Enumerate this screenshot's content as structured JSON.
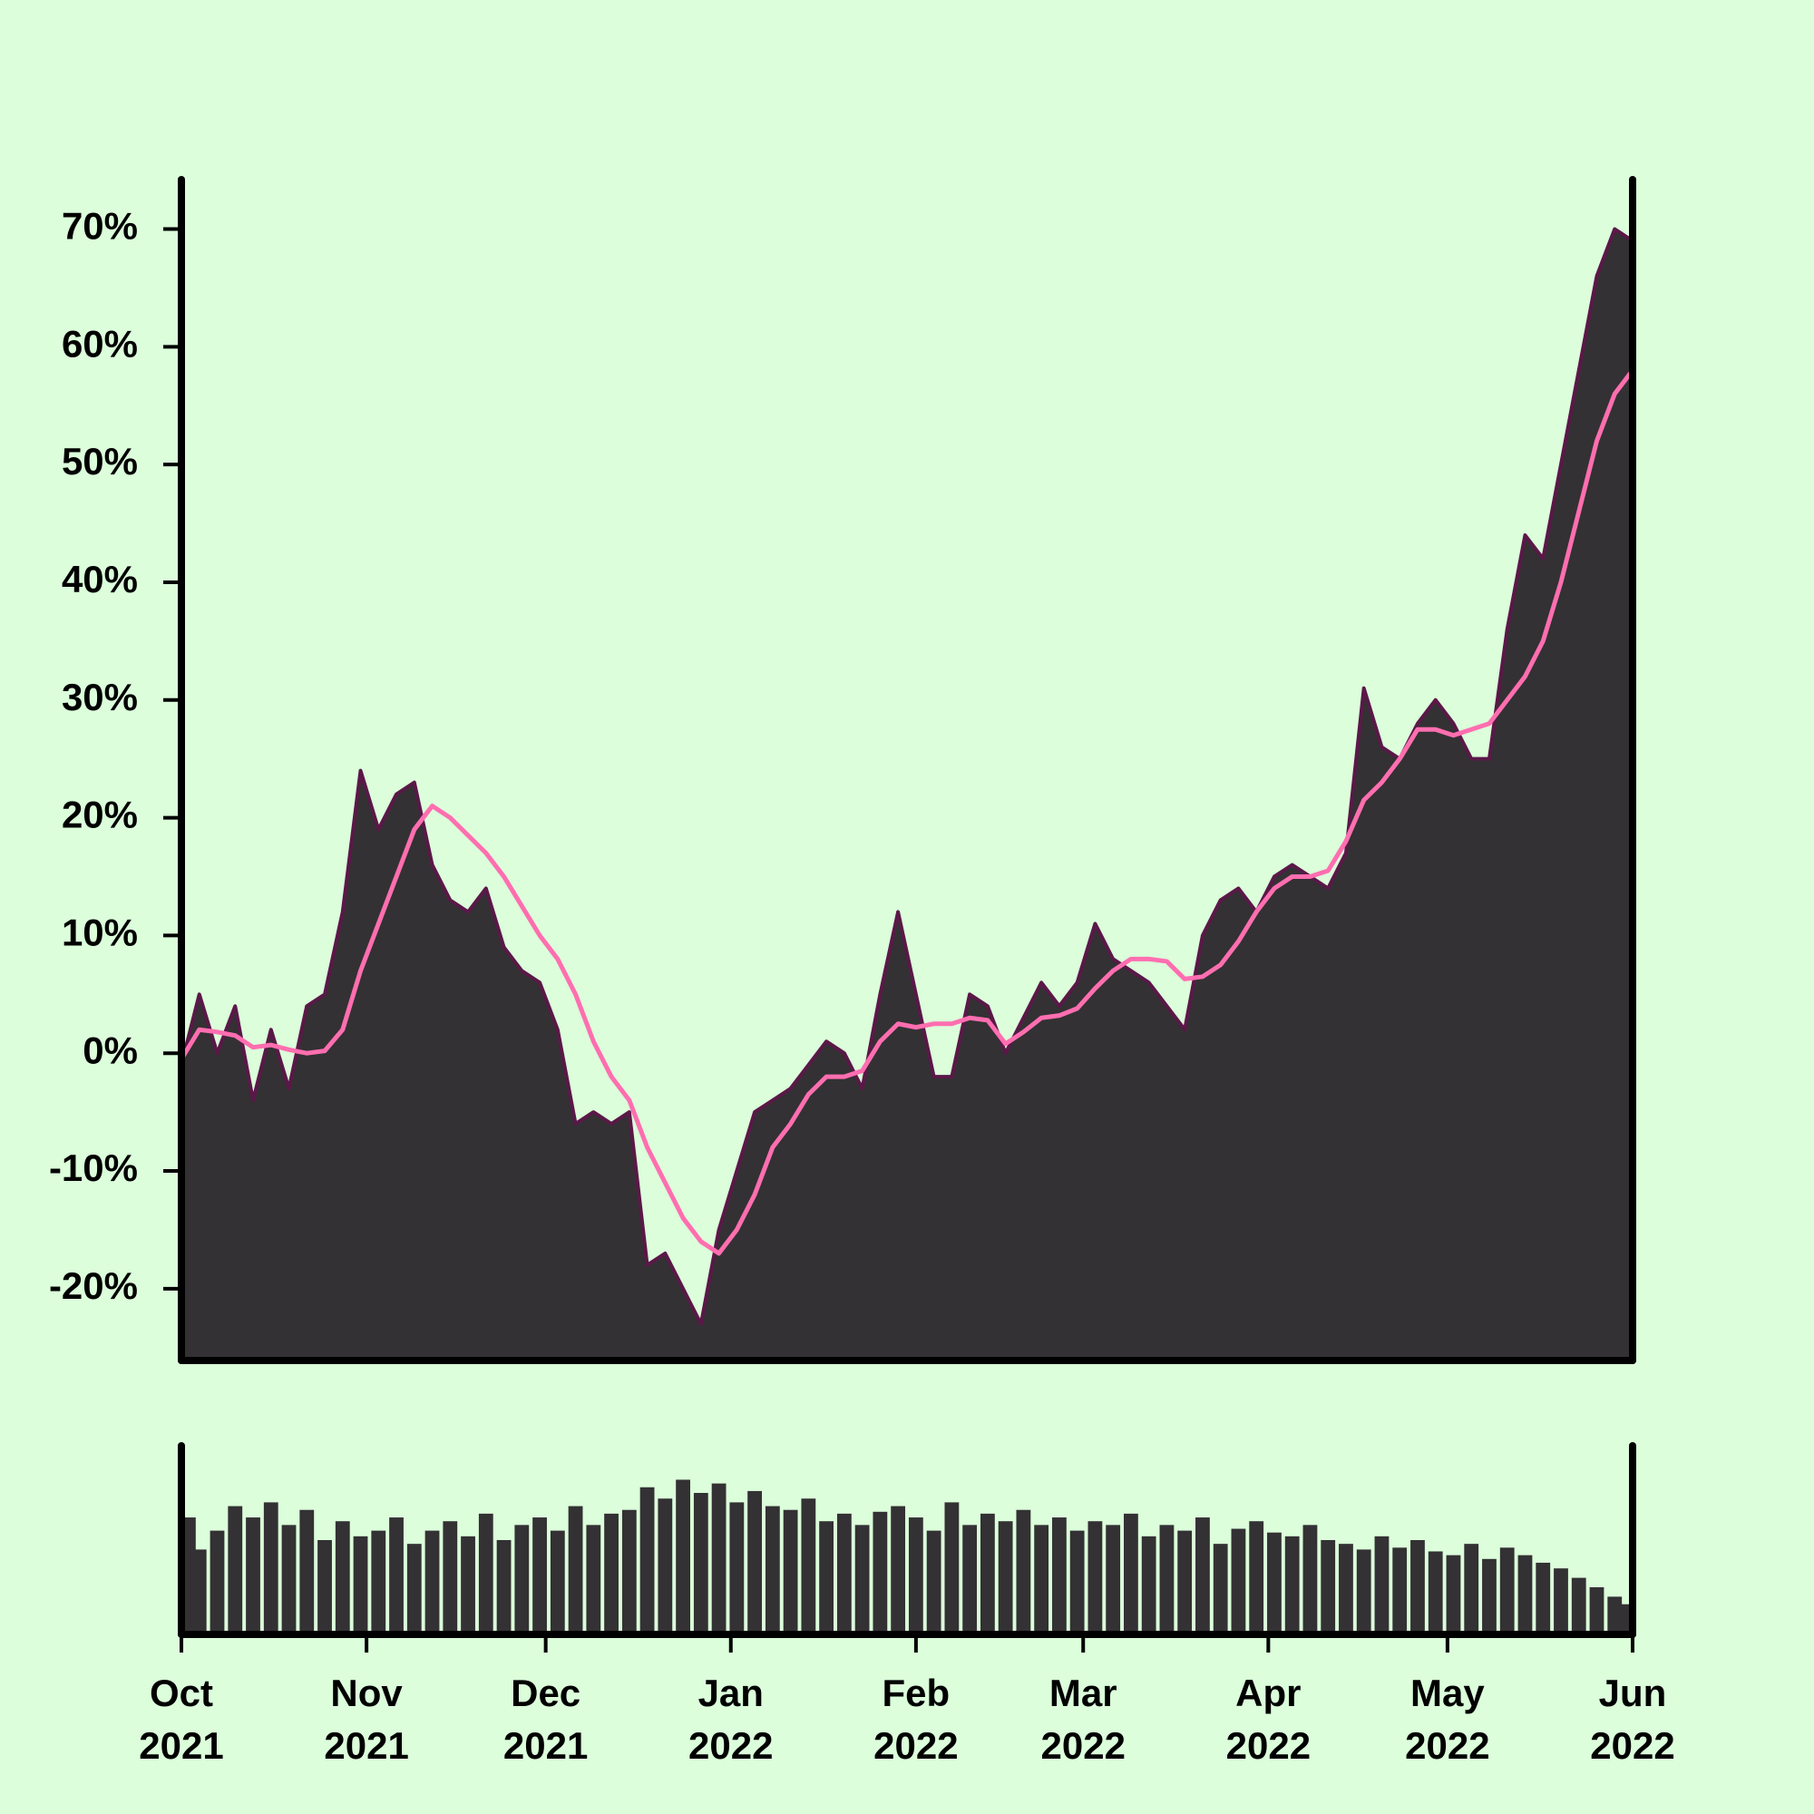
{
  "chart_data": {
    "type": "area",
    "x": [
      0,
      3,
      6,
      9,
      12,
      15,
      18,
      21,
      24,
      27,
      30,
      33,
      36,
      39,
      42,
      45,
      48,
      51,
      54,
      57,
      60,
      63,
      66,
      69,
      72,
      75,
      78,
      81,
      84,
      87,
      90,
      93,
      96,
      99,
      102,
      105,
      108,
      111,
      114,
      117,
      120,
      123,
      126,
      129,
      132,
      135,
      138,
      141,
      144,
      147,
      150,
      153,
      156,
      159,
      162,
      165,
      168,
      171,
      174,
      177,
      180,
      183,
      186,
      189,
      192,
      195,
      198,
      201,
      204,
      207,
      210,
      213,
      216,
      219,
      222,
      225,
      228,
      231,
      234,
      237,
      240,
      243
    ],
    "series": [
      {
        "color": "#333133",
        "edge_color": "#5a1848",
        "values": [
          -1,
          5,
          0,
          4,
          -4,
          2,
          -3,
          4,
          5,
          12,
          24,
          19,
          22,
          23,
          16,
          13,
          12,
          14,
          9,
          7,
          6,
          2,
          -6,
          -5,
          -6,
          -5,
          -18,
          -17,
          -20,
          -23,
          -15,
          -10,
          -5,
          -4,
          -3,
          -1,
          1,
          0,
          -3,
          5,
          12,
          5,
          -2,
          -2,
          5,
          4,
          0,
          3,
          6,
          4,
          6,
          11,
          8,
          7,
          6,
          4,
          2,
          10,
          13,
          14,
          12,
          15,
          16,
          15,
          14,
          17,
          31,
          26,
          25,
          28,
          30,
          28,
          25,
          25,
          36,
          44,
          42,
          50,
          58,
          66,
          70,
          69
        ]
      },
      {
        "type": "line",
        "color": "#ff6eb0",
        "values": [
          -0.5,
          2,
          1.8,
          1.5,
          0.5,
          0.7,
          0.3,
          0,
          0.2,
          2,
          7,
          11,
          15,
          19,
          21,
          20,
          18.5,
          17,
          15,
          12.5,
          10,
          8,
          5,
          1,
          -2,
          -4,
          -8,
          -11,
          -14,
          -16,
          -17,
          -15,
          -12,
          -8,
          -6,
          -3.5,
          -2,
          -2,
          -1.5,
          1,
          2.5,
          2.2,
          2.5,
          2.5,
          3,
          2.8,
          0.8,
          1.8,
          3,
          3.2,
          3.8,
          5.5,
          7,
          8,
          8,
          7.8,
          6.3,
          6.5,
          7.5,
          9.5,
          12,
          14,
          15,
          15,
          15.5,
          18,
          21.5,
          23,
          25,
          27.5,
          27.5,
          27,
          27.5,
          28,
          30,
          32,
          35,
          40,
          46,
          52,
          56,
          58
        ]
      }
    ],
    "volume": {
      "color": "#333133",
      "values": [
        62,
        45,
        55,
        68,
        62,
        70,
        58,
        66,
        50,
        60,
        52,
        55,
        62,
        48,
        55,
        60,
        52,
        64,
        50,
        58,
        62,
        55,
        68,
        58,
        64,
        66,
        78,
        72,
        82,
        75,
        80,
        70,
        76,
        68,
        66,
        72,
        60,
        64,
        58,
        65,
        68,
        62,
        55,
        70,
        58,
        64,
        60,
        66,
        58,
        62,
        55,
        60,
        58,
        64,
        52,
        58,
        55,
        62,
        48,
        56,
        60,
        54,
        52,
        58,
        50,
        48,
        45,
        52,
        46,
        50,
        44,
        42,
        48,
        40,
        46,
        42,
        38,
        35,
        30,
        25,
        20,
        16
      ]
    },
    "volume_ylim": [
      0,
      100
    ],
    "xlim": [
      0,
      243
    ],
    "xticks": [
      {
        "value": 0,
        "label": "Oct\n2021"
      },
      {
        "value": 31,
        "label": "Nov\n2021"
      },
      {
        "value": 61,
        "label": "Dec\n2021"
      },
      {
        "value": 92,
        "label": "Jan\n2022"
      },
      {
        "value": 123,
        "label": "Feb\n2022"
      },
      {
        "value": 151,
        "label": "Mar\n2022"
      },
      {
        "value": 182,
        "label": "Apr\n2022"
      },
      {
        "value": 212,
        "label": "May\n2022"
      },
      {
        "value": 243,
        "label": "Jun\n2022"
      }
    ],
    "ylim": [
      -26.1,
      74.2
    ],
    "yticks": [
      {
        "value": -20,
        "label": "-20%"
      },
      {
        "value": -10,
        "label": "-10%"
      },
      {
        "value": 0,
        "label": "0%"
      },
      {
        "value": 10,
        "label": "10%"
      },
      {
        "value": 20,
        "label": "20%"
      },
      {
        "value": 30,
        "label": "30%"
      },
      {
        "value": 40,
        "label": "40%"
      },
      {
        "value": 50,
        "label": "50%"
      },
      {
        "value": 60,
        "label": "60%"
      },
      {
        "value": 70,
        "label": "70%"
      }
    ]
  }
}
